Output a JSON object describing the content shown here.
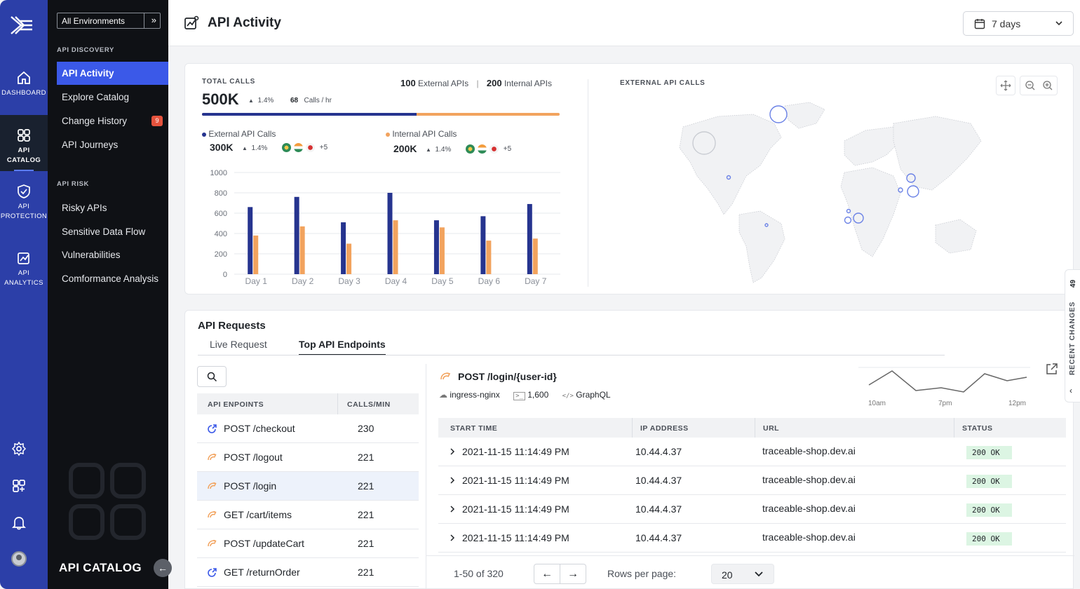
{
  "rail": {
    "dashboard_label": "DASHBOARD",
    "catalog_label": "API CATALOG",
    "protection_label_1": "API",
    "protection_label_2": "PROTECTION",
    "analytics_label_1": "API",
    "analytics_label_2": "ANALYTICS",
    "accent": "#2c3fa8"
  },
  "sidebar": {
    "environment": "All Environments",
    "discovery_heading": "API DISCOVERY",
    "discovery_items": [
      {
        "label": "API Activity"
      },
      {
        "label": "Explore Catalog"
      },
      {
        "label": "Change History",
        "badge": "9"
      },
      {
        "label": "API Journeys"
      }
    ],
    "risk_heading": "API RISK",
    "risk_items": [
      {
        "label": "Risky APIs"
      },
      {
        "label": "Sensitive Data Flow"
      },
      {
        "label": "Vulnerabilities"
      },
      {
        "label": "Comformance Analysis"
      }
    ],
    "footer": "API CATALOG"
  },
  "header": {
    "title": "API Activity",
    "range": "7 days"
  },
  "summary": {
    "total_label": "TOTAL CALLS",
    "total_value": "500K",
    "total_change": "1.4%",
    "rate_value": "68",
    "rate_unit": "Calls / hr",
    "external_count": "100",
    "external_text": "External APIs",
    "internal_count": "200",
    "internal_text": "Internal APIs",
    "split_external_fraction": 0.6,
    "external": {
      "label": "External API Calls",
      "value": "300K",
      "change": "1.4%",
      "more": "+5"
    },
    "internal": {
      "label": "Internal API Calls",
      "value": "200K",
      "change": "1.4%",
      "more": "+5"
    }
  },
  "chart_data": {
    "type": "bar",
    "categories": [
      "Day 1",
      "Day 2",
      "Day 3",
      "Day 4",
      "Day 5",
      "Day 6",
      "Day 7"
    ],
    "series": [
      {
        "name": "External API Calls",
        "color": "#26348f",
        "values": [
          660,
          760,
          510,
          800,
          530,
          570,
          690
        ]
      },
      {
        "name": "Internal API Calls",
        "color": "#f2a35e",
        "values": [
          380,
          470,
          300,
          530,
          460,
          330,
          350
        ]
      }
    ],
    "yticks": [
      0,
      200,
      400,
      600,
      800,
      1000
    ],
    "ylim": [
      0,
      1000
    ],
    "grid": true
  },
  "map": {
    "title": "EXTERNAL API CALLS",
    "controls": [
      "move-icon",
      "zoom-out-icon",
      "zoom-in-icon"
    ]
  },
  "requests": {
    "title": "API Requests",
    "tabs": [
      "Live Request",
      "Top API Endpoints"
    ],
    "active_tab": 1,
    "endpoint_header": "API ENPOINTS",
    "calls_header": "CALLS/MIN",
    "endpoints": [
      {
        "name": "POST /checkout",
        "calls": "230",
        "kind": "external"
      },
      {
        "name": "POST /logout",
        "calls": "221",
        "kind": "internal"
      },
      {
        "name": "POST /login",
        "calls": "221",
        "kind": "internal"
      },
      {
        "name": "GET /cart/items",
        "calls": "221",
        "kind": "internal"
      },
      {
        "name": "POST /updateCart",
        "calls": "221",
        "kind": "internal"
      },
      {
        "name": "GET /returnOrder",
        "calls": "221",
        "kind": "external"
      }
    ],
    "selected_index": 2,
    "detail": {
      "title": "POST /login/{user-id}",
      "service": "ingress-nginx",
      "count": "1,600",
      "protocol": "GraphQL",
      "spark_labels": [
        "10am",
        "7pm",
        "12pm"
      ]
    },
    "columns": [
      "START TIME",
      "IP ADDRESS",
      "URL",
      "STATUS"
    ],
    "rows": [
      {
        "time": "2021-11-15 11:14:49 PM",
        "ip": "10.44.4.37",
        "url": "traceable-shop.dev.ai",
        "status": "200 OK"
      },
      {
        "time": "2021-11-15 11:14:49 PM",
        "ip": "10.44.4.37",
        "url": "traceable-shop.dev.ai",
        "status": "200 OK"
      },
      {
        "time": "2021-11-15 11:14:49 PM",
        "ip": "10.44.4.37",
        "url": "traceable-shop.dev.ai",
        "status": "200 OK"
      },
      {
        "time": "2021-11-15 11:14:49 PM",
        "ip": "10.44.4.37",
        "url": "traceable-shop.dev.ai",
        "status": "200 OK"
      }
    ],
    "pagination": {
      "range": "1-50 of 320",
      "rows_label": "Rows per page:",
      "rows_value": "20"
    }
  },
  "recent_changes": {
    "label": "RECENT CHANGES",
    "count": "49"
  }
}
